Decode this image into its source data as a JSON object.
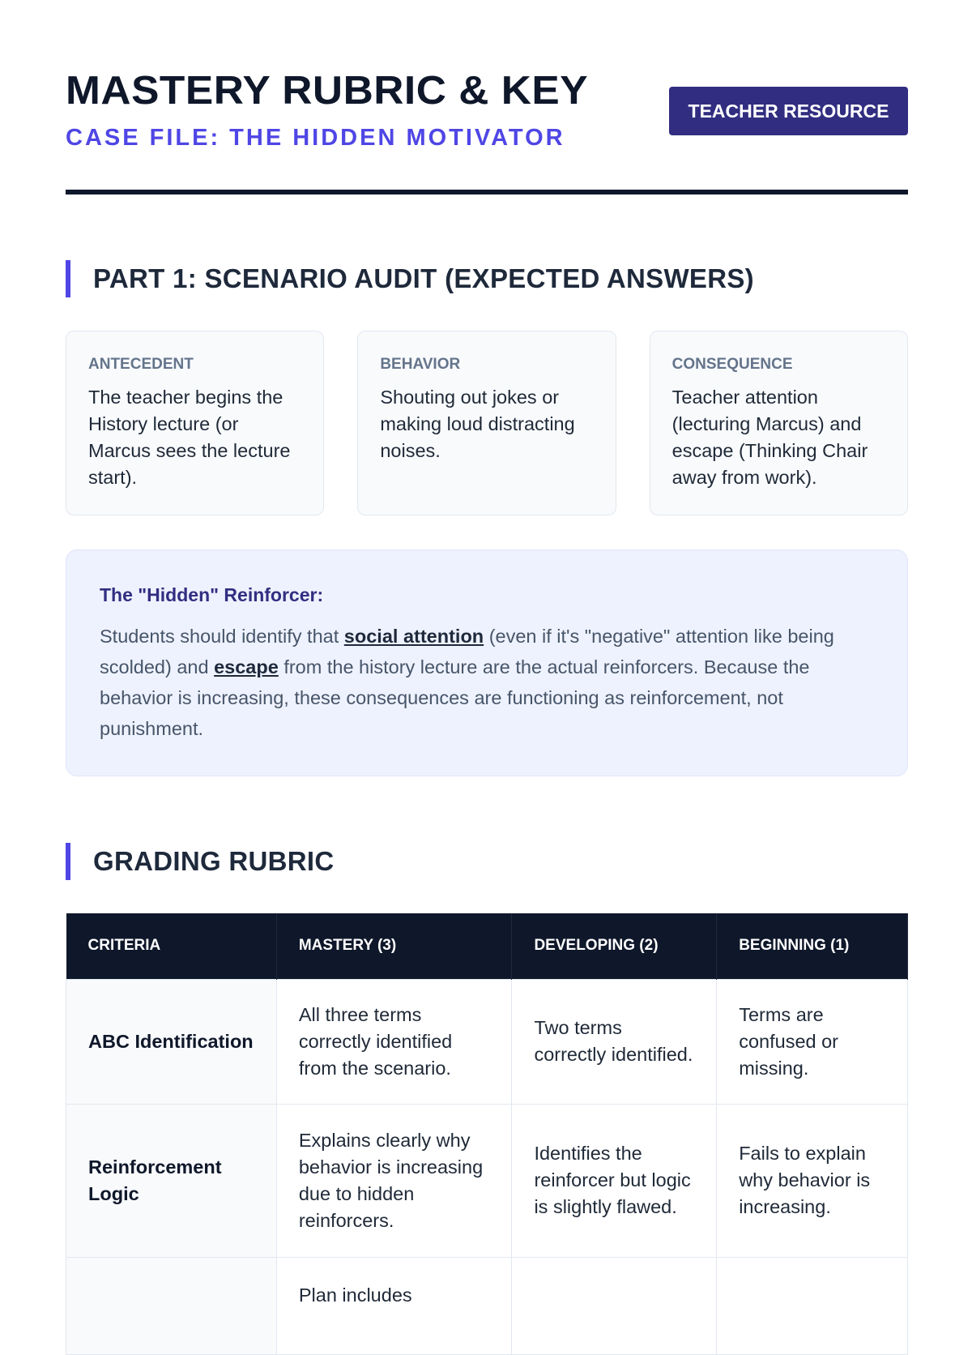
{
  "header": {
    "title": "MASTERY RUBRIC & KEY",
    "subtitle": "CASE FILE: THE HIDDEN MOTIVATOR",
    "badge": "TEACHER RESOURCE"
  },
  "part1": {
    "heading": "PART 1: SCENARIO AUDIT (EXPECTED ANSWERS)",
    "cards": [
      {
        "label": "ANTECEDENT",
        "text": "The teacher begins the History lecture (or Marcus sees the lecture start)."
      },
      {
        "label": "BEHAVIOR",
        "text": "Shouting out jokes or making loud distracting noises."
      },
      {
        "label": "CONSEQUENCE",
        "text": "Teacher attention (lecturing Marcus) and escape (Thinking Chair away from work)."
      }
    ],
    "callout": {
      "title": "The \"Hidden\" Reinforcer:",
      "t1": "Students should identify that ",
      "k1": "social attention",
      "t2": " (even if it's \"negative\" attention like being scolded) and ",
      "k2": "escape",
      "t3": " from the history lecture are the actual reinforcers. Because the behavior is increasing, these consequences are functioning as reinforcement, not punishment."
    }
  },
  "rubric": {
    "heading": "GRADING RUBRIC",
    "columns": [
      "CRITERIA",
      "MASTERY (3)",
      "DEVELOPING (2)",
      "BEGINNING (1)"
    ],
    "rows": [
      [
        "ABC Identification",
        "All three terms correctly identified from the scenario.",
        "Two terms correctly identified.",
        "Terms are confused or missing."
      ],
      [
        "Reinforcement Logic",
        "Explains clearly why behavior is increasing due to hidden reinforcers.",
        "Identifies the reinforcer but logic is slightly flawed.",
        "Fails to explain why behavior is increasing."
      ],
      [
        "",
        "Plan includes",
        "",
        ""
      ]
    ]
  }
}
